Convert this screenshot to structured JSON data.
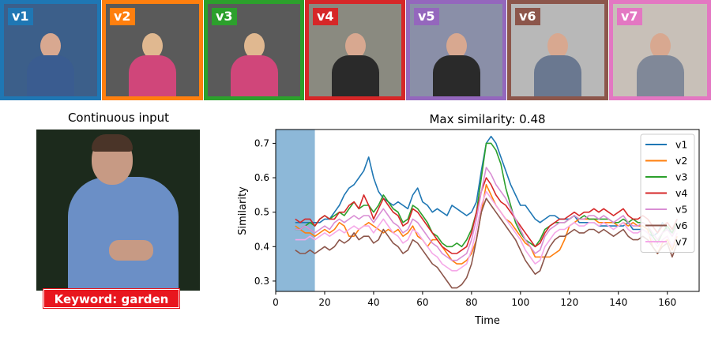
{
  "thumbnails": [
    {
      "label": "v1",
      "color": "#1f77b4"
    },
    {
      "label": "v2",
      "color": "#ff7f0e"
    },
    {
      "label": "v3",
      "color": "#2ca02c"
    },
    {
      "label": "v4",
      "color": "#d62728"
    },
    {
      "label": "v5",
      "color": "#9467bd"
    },
    {
      "label": "v6",
      "color": "#8c564b"
    },
    {
      "label": "v7",
      "color": "#e377c2"
    }
  ],
  "input_panel": {
    "title": "Continuous input",
    "keyword_label": "Keyword: garden"
  },
  "chart_data": {
    "type": "line",
    "title": "Max similarity: 0.48",
    "xlabel": "Time",
    "ylabel": "Similarity",
    "xlim": [
      0,
      173
    ],
    "ylim": [
      0.27,
      0.74
    ],
    "xticks": [
      0,
      20,
      40,
      60,
      80,
      100,
      120,
      140,
      160
    ],
    "yticks": [
      0.3,
      0.4,
      0.5,
      0.6,
      0.7
    ],
    "highlight_span": [
      0,
      16
    ],
    "legend_position": "top-right",
    "x_start": 8,
    "x_step": 2,
    "series": [
      {
        "name": "v1",
        "color": "#1f77b4",
        "values": [
          0.47,
          0.47,
          0.47,
          0.47,
          0.47,
          0.47,
          0.48,
          0.48,
          0.5,
          0.52,
          0.55,
          0.57,
          0.58,
          0.6,
          0.62,
          0.66,
          0.6,
          0.56,
          0.54,
          0.53,
          0.52,
          0.53,
          0.52,
          0.51,
          0.55,
          0.57,
          0.53,
          0.52,
          0.5,
          0.51,
          0.5,
          0.49,
          0.52,
          0.51,
          0.5,
          0.49,
          0.5,
          0.53,
          0.62,
          0.7,
          0.72,
          0.7,
          0.66,
          0.62,
          0.58,
          0.55,
          0.52,
          0.52,
          0.5,
          0.48,
          0.47,
          0.48,
          0.49,
          0.49,
          0.48,
          0.48,
          0.48,
          0.49,
          0.47,
          0.47,
          0.47,
          0.47,
          0.46,
          0.46,
          0.46,
          0.46,
          0.46,
          0.46,
          0.47,
          0.45,
          0.45,
          0.45,
          0.44,
          0.43,
          0.44,
          0.47,
          0.45,
          0.44,
          0.48
        ]
      },
      {
        "name": "v2",
        "color": "#ff7f0e",
        "values": [
          0.46,
          0.45,
          0.44,
          0.44,
          0.43,
          0.44,
          0.45,
          0.44,
          0.45,
          0.47,
          0.46,
          0.43,
          0.43,
          0.45,
          0.46,
          0.47,
          0.46,
          0.45,
          0.44,
          0.45,
          0.44,
          0.45,
          0.43,
          0.44,
          0.46,
          0.43,
          0.42,
          0.4,
          0.42,
          0.42,
          0.4,
          0.38,
          0.36,
          0.35,
          0.35,
          0.36,
          0.38,
          0.42,
          0.5,
          0.58,
          0.55,
          0.52,
          0.5,
          0.48,
          0.47,
          0.45,
          0.43,
          0.41,
          0.4,
          0.37,
          0.37,
          0.37,
          0.37,
          0.38,
          0.39,
          0.42,
          0.46,
          0.47,
          0.48,
          0.48,
          0.48,
          0.48,
          0.47,
          0.47,
          0.47,
          0.47,
          0.46,
          0.47,
          0.46,
          0.47,
          0.46,
          0.46,
          0.45,
          0.4,
          0.38,
          0.41,
          0.42,
          0.39,
          0.43
        ]
      },
      {
        "name": "v3",
        "color": "#2ca02c",
        "values": [
          0.45,
          0.45,
          0.46,
          0.47,
          0.46,
          0.48,
          0.49,
          0.48,
          0.49,
          0.5,
          0.49,
          0.51,
          0.53,
          0.51,
          0.52,
          0.52,
          0.5,
          0.52,
          0.55,
          0.53,
          0.51,
          0.5,
          0.47,
          0.48,
          0.52,
          0.51,
          0.49,
          0.47,
          0.44,
          0.43,
          0.41,
          0.4,
          0.4,
          0.41,
          0.4,
          0.42,
          0.45,
          0.5,
          0.6,
          0.7,
          0.7,
          0.68,
          0.64,
          0.57,
          0.52,
          0.47,
          0.44,
          0.42,
          0.41,
          0.4,
          0.42,
          0.45,
          0.46,
          0.47,
          0.47,
          0.47,
          0.48,
          0.49,
          0.48,
          0.49,
          0.48,
          0.48,
          0.48,
          0.48,
          0.48,
          0.47,
          0.47,
          0.48,
          0.47,
          0.48,
          0.47,
          0.47,
          0.46,
          0.43,
          0.41,
          0.44,
          0.46,
          0.44,
          0.47
        ]
      },
      {
        "name": "v4",
        "color": "#d62728",
        "values": [
          0.48,
          0.47,
          0.48,
          0.48,
          0.46,
          0.48,
          0.49,
          0.48,
          0.48,
          0.5,
          0.5,
          0.52,
          0.53,
          0.51,
          0.55,
          0.52,
          0.48,
          0.51,
          0.54,
          0.52,
          0.5,
          0.49,
          0.46,
          0.47,
          0.51,
          0.5,
          0.48,
          0.46,
          0.44,
          0.42,
          0.4,
          0.39,
          0.38,
          0.38,
          0.39,
          0.4,
          0.44,
          0.5,
          0.56,
          0.6,
          0.58,
          0.55,
          0.53,
          0.52,
          0.5,
          0.48,
          0.46,
          0.44,
          0.42,
          0.4,
          0.41,
          0.44,
          0.46,
          0.47,
          0.48,
          0.48,
          0.49,
          0.5,
          0.49,
          0.5,
          0.5,
          0.51,
          0.5,
          0.51,
          0.5,
          0.49,
          0.5,
          0.51,
          0.49,
          0.48,
          0.48,
          0.49,
          0.48,
          0.46,
          0.44,
          0.46,
          0.47,
          0.45,
          0.48
        ]
      },
      {
        "name": "v5",
        "color": "#d98ed4",
        "values": [
          0.45,
          0.45,
          0.46,
          0.45,
          0.44,
          0.45,
          0.46,
          0.45,
          0.47,
          0.48,
          0.47,
          0.48,
          0.49,
          0.48,
          0.49,
          0.49,
          0.47,
          0.49,
          0.51,
          0.49,
          0.47,
          0.46,
          0.44,
          0.45,
          0.48,
          0.47,
          0.45,
          0.43,
          0.41,
          0.4,
          0.38,
          0.37,
          0.36,
          0.36,
          0.37,
          0.38,
          0.42,
          0.48,
          0.56,
          0.63,
          0.61,
          0.58,
          0.56,
          0.54,
          0.51,
          0.48,
          0.45,
          0.42,
          0.4,
          0.38,
          0.39,
          0.43,
          0.45,
          0.46,
          0.47,
          0.47,
          0.48,
          0.49,
          0.48,
          0.48,
          0.49,
          0.49,
          0.48,
          0.49,
          0.48,
          0.47,
          0.48,
          0.49,
          0.47,
          0.46,
          0.46,
          0.47,
          0.46,
          0.44,
          0.42,
          0.44,
          0.45,
          0.43,
          0.46
        ]
      },
      {
        "name": "v6",
        "color": "#8c564b",
        "values": [
          0.39,
          0.38,
          0.38,
          0.39,
          0.38,
          0.39,
          0.4,
          0.39,
          0.4,
          0.42,
          0.41,
          0.42,
          0.44,
          0.42,
          0.43,
          0.43,
          0.41,
          0.42,
          0.45,
          0.43,
          0.41,
          0.4,
          0.38,
          0.39,
          0.42,
          0.41,
          0.39,
          0.37,
          0.35,
          0.34,
          0.32,
          0.3,
          0.28,
          0.28,
          0.29,
          0.31,
          0.35,
          0.42,
          0.5,
          0.54,
          0.52,
          0.5,
          0.48,
          0.46,
          0.44,
          0.42,
          0.39,
          0.36,
          0.34,
          0.32,
          0.33,
          0.37,
          0.4,
          0.42,
          0.43,
          0.43,
          0.44,
          0.45,
          0.44,
          0.44,
          0.45,
          0.45,
          0.44,
          0.45,
          0.44,
          0.43,
          0.44,
          0.45,
          0.43,
          0.42,
          0.42,
          0.43,
          0.42,
          0.4,
          0.38,
          0.4,
          0.41,
          0.37,
          0.41
        ]
      },
      {
        "name": "v7",
        "color": "#f5a8e8",
        "values": [
          0.42,
          0.42,
          0.42,
          0.43,
          0.42,
          0.43,
          0.44,
          0.43,
          0.44,
          0.45,
          0.44,
          0.45,
          0.46,
          0.45,
          0.46,
          0.46,
          0.44,
          0.46,
          0.48,
          0.46,
          0.44,
          0.43,
          0.41,
          0.42,
          0.45,
          0.44,
          0.42,
          0.4,
          0.38,
          0.37,
          0.35,
          0.34,
          0.33,
          0.33,
          0.34,
          0.35,
          0.39,
          0.45,
          0.52,
          0.56,
          0.54,
          0.52,
          0.5,
          0.48,
          0.46,
          0.44,
          0.42,
          0.39,
          0.37,
          0.35,
          0.36,
          0.4,
          0.42,
          0.44,
          0.45,
          0.45,
          0.46,
          0.47,
          0.46,
          0.46,
          0.47,
          0.47,
          0.46,
          0.47,
          0.46,
          0.45,
          0.46,
          0.47,
          0.45,
          0.44,
          0.44,
          0.45,
          0.44,
          0.42,
          0.4,
          0.42,
          0.43,
          0.4,
          0.44
        ]
      }
    ]
  }
}
